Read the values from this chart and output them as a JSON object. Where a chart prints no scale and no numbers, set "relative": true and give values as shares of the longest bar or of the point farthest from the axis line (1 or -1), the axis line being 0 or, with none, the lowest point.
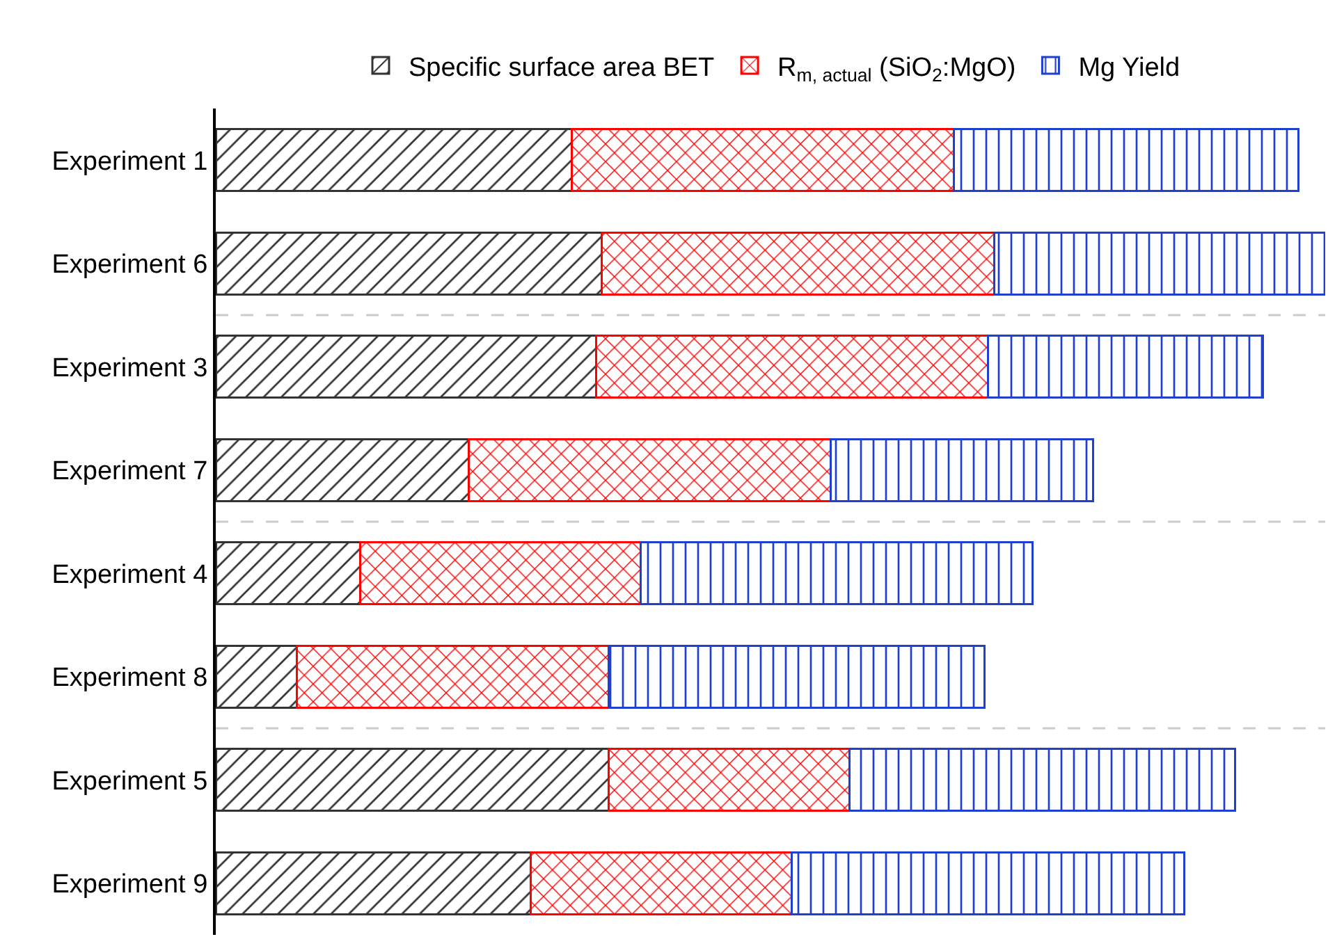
{
  "chart_data": {
    "type": "bar",
    "orientation": "horizontal",
    "stacked": true,
    "relative": true,
    "categories": [
      "Experiment 1",
      "Experiment 6",
      "Experiment 3",
      "Experiment 7",
      "Experiment 4",
      "Experiment 8",
      "Experiment 5",
      "Experiment 9"
    ],
    "series": [
      {
        "name": "Specific surface area BET",
        "color": "#333333",
        "values": [
          0.321,
          0.348,
          0.343,
          0.228,
          0.13,
          0.073,
          0.354,
          0.284
        ]
      },
      {
        "name": "R$_{m, actual}$ (SiO$_{2}$:MgO)",
        "color": "#ff0000",
        "values": [
          0.344,
          0.354,
          0.353,
          0.326,
          0.253,
          0.281,
          0.217,
          0.235
        ]
      },
      {
        "name": "Mg Yield",
        "color": "#1f3fcf",
        "values": [
          0.311,
          0.298,
          0.248,
          0.237,
          0.353,
          0.339,
          0.348,
          0.354
        ]
      }
    ],
    "legend": "top"
  }
}
